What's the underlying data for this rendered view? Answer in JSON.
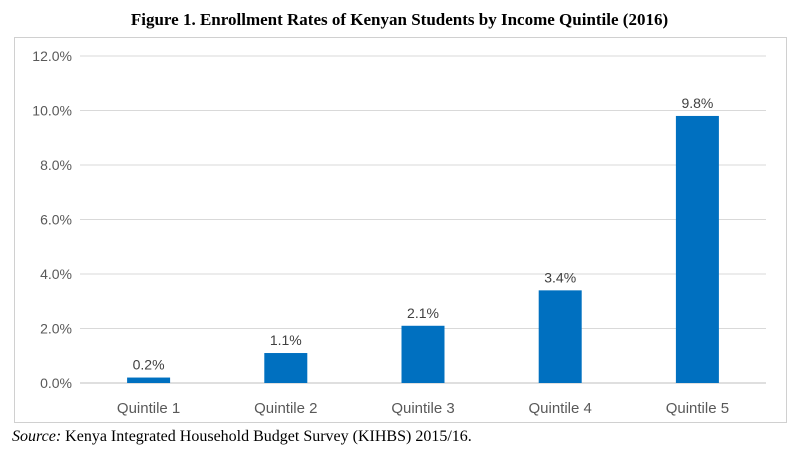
{
  "title": "Figure 1. Enrollment Rates of Kenyan Students by Income Quintile (2016)",
  "source": {
    "label": "Source:",
    "text": " Kenya Integrated Household Budget Survey (KIHBS) 2015/16."
  },
  "colors": {
    "bar": "#0070C0",
    "grid": "#d9d9d9",
    "axis": "#bfbfbf"
  },
  "chart_data": {
    "type": "bar",
    "categories": [
      "Quintile 1",
      "Quintile 2",
      "Quintile 3",
      "Quintile 4",
      "Quintile 5"
    ],
    "values": [
      0.2,
      1.1,
      2.1,
      3.4,
      9.8
    ],
    "data_labels": [
      "0.2%",
      "1.1%",
      "2.1%",
      "3.4%",
      "9.8%"
    ],
    "yticks": [
      0,
      2,
      4,
      6,
      8,
      10,
      12
    ],
    "ytick_labels": [
      "0.0%",
      "2.0%",
      "4.0%",
      "6.0%",
      "8.0%",
      "10.0%",
      "12.0%"
    ],
    "ylim": [
      0,
      12
    ],
    "grid": true,
    "legend": "none"
  }
}
